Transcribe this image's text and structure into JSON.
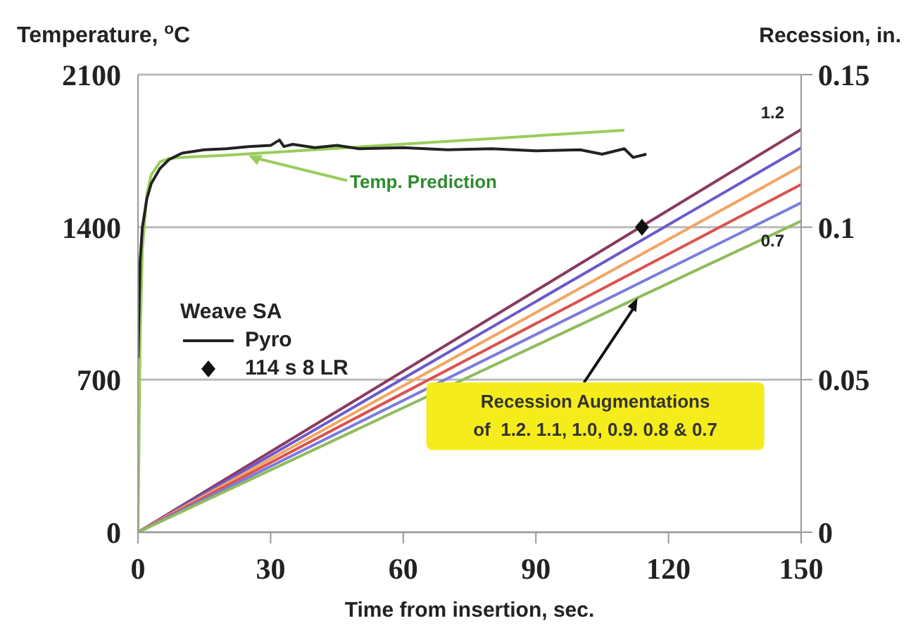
{
  "chart_data": {
    "type": "line",
    "xlabel": "Time from insertion, sec.",
    "ylabel": "Temperature, $^{o}$C",
    "y2label": "Recession, in.",
    "legend_title": "Weave SA",
    "legend": "left",
    "grid": "y",
    "line_style": "solid",
    "xlim": [
      0,
      150
    ],
    "xticks": [
      0,
      30,
      60,
      90,
      120,
      150
    ],
    "ylim": [
      0,
      2100
    ],
    "yticks": [
      0,
      700,
      1400,
      2100
    ],
    "y2lim": [
      0,
      0.15
    ],
    "y2ticks": [
      0,
      0.05,
      0.1,
      0.15
    ],
    "annotations": [
      {
        "text": "Temp. Prediction",
        "x": 25,
        "y": 1730
      },
      {
        "text": "Recession Augmentations\nof  1.2. 1.1, 1.0, 0.9. 0.8 & 0.7",
        "x": 113,
        "y": 1075
      }
    ],
    "series": [
      {
        "color": "#9acd5a",
        "marker": "none",
        "x": [
          0,
          0.5,
          1,
          2,
          3,
          5,
          7,
          10,
          20,
          110
        ],
        "values": [
          0,
          900,
          1300,
          1550,
          1640,
          1700,
          1715,
          1720,
          1730,
          1845
        ]
      },
      {
        "name": "Pyro",
        "color": "#222222",
        "marker": "none",
        "x": [
          0,
          0.5,
          1,
          2,
          3,
          5,
          7,
          10,
          15,
          20,
          25,
          30,
          32,
          33,
          35,
          40,
          45,
          50,
          60,
          70,
          80,
          90,
          100,
          105,
          110,
          112,
          115
        ],
        "values": [
          800,
          1250,
          1400,
          1530,
          1600,
          1670,
          1710,
          1740,
          1755,
          1760,
          1770,
          1775,
          1800,
          1770,
          1780,
          1765,
          1775,
          1760,
          1765,
          1755,
          1760,
          1750,
          1755,
          1735,
          1760,
          1720,
          1735
        ]
      },
      {
        "name": "1.2",
        "color": "#8b3a62",
        "axis": "y2",
        "marker": "none",
        "x": [
          0,
          150
        ],
        "values": [
          0,
          0.132
        ]
      },
      {
        "color": "#6a5acd",
        "axis": "y2",
        "marker": "none",
        "x": [
          0,
          150
        ],
        "values": [
          0,
          0.126
        ]
      },
      {
        "color": "#f4a460",
        "axis": "y2",
        "marker": "none",
        "x": [
          0,
          150
        ],
        "values": [
          0,
          0.12
        ]
      },
      {
        "color": "#d9534f",
        "axis": "y2",
        "marker": "none",
        "x": [
          0,
          150
        ],
        "values": [
          0,
          0.114
        ]
      },
      {
        "color": "#7b7be0",
        "axis": "y2",
        "marker": "none",
        "x": [
          0,
          150
        ],
        "values": [
          0,
          0.108
        ]
      },
      {
        "name": "0.7",
        "color": "#8fbc5a",
        "axis": "y2",
        "marker": "none",
        "x": [
          0,
          150
        ],
        "values": [
          0,
          0.102
        ]
      },
      {
        "name": "114 s 8 LR",
        "type": "scatter",
        "color": "#111111",
        "axis": "y2",
        "marker": "diamond",
        "x": [
          114
        ],
        "values": [
          0.1
        ]
      }
    ]
  }
}
